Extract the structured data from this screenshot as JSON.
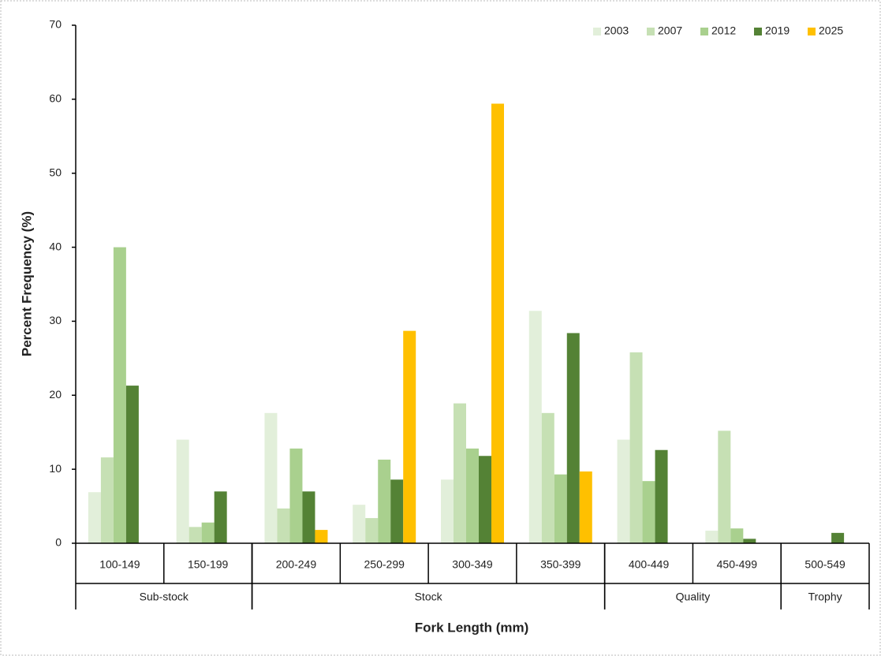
{
  "chart_data": {
    "type": "bar",
    "x_label": "Fork Length (mm)",
    "y_label": "Percent Frequency (%)",
    "categories": [
      "100-149",
      "150-199",
      "200-249",
      "250-299",
      "300-349",
      "350-399",
      "400-449",
      "450-499",
      "500-549"
    ],
    "groups": [
      {
        "name": "Sub-stock",
        "categories": [
          "100-149",
          "150-199"
        ]
      },
      {
        "name": "Stock",
        "categories": [
          "200-249",
          "250-299",
          "300-349",
          "350-399"
        ]
      },
      {
        "name": "Quality",
        "categories": [
          "400-449",
          "450-499"
        ]
      },
      {
        "name": "Trophy",
        "categories": [
          "500-549"
        ]
      }
    ],
    "series": [
      {
        "name": "2003",
        "color": "#e2efda",
        "values": [
          6.9,
          14.0,
          17.6,
          5.2,
          8.6,
          31.4,
          14.0,
          1.7,
          0
        ]
      },
      {
        "name": "2007",
        "color": "#c6e0b4",
        "values": [
          11.6,
          2.2,
          4.7,
          3.4,
          18.9,
          17.6,
          25.8,
          15.2,
          0
        ]
      },
      {
        "name": "2012",
        "color": "#a9d08e",
        "values": [
          40.0,
          2.8,
          12.8,
          11.3,
          12.8,
          9.3,
          8.4,
          2.0,
          0
        ]
      },
      {
        "name": "2019",
        "color": "#548235",
        "values": [
          21.3,
          7.0,
          7.0,
          8.6,
          11.8,
          28.4,
          12.6,
          0.6,
          1.4
        ]
      },
      {
        "name": "2025",
        "color": "#ffc000",
        "values": [
          0,
          0,
          1.8,
          28.7,
          59.4,
          9.7,
          0,
          0,
          0
        ]
      }
    ],
    "ylim": [
      0,
      70
    ],
    "yticks": [
      0,
      10,
      20,
      30,
      40,
      50,
      60,
      70
    ],
    "legend": "upper right"
  }
}
